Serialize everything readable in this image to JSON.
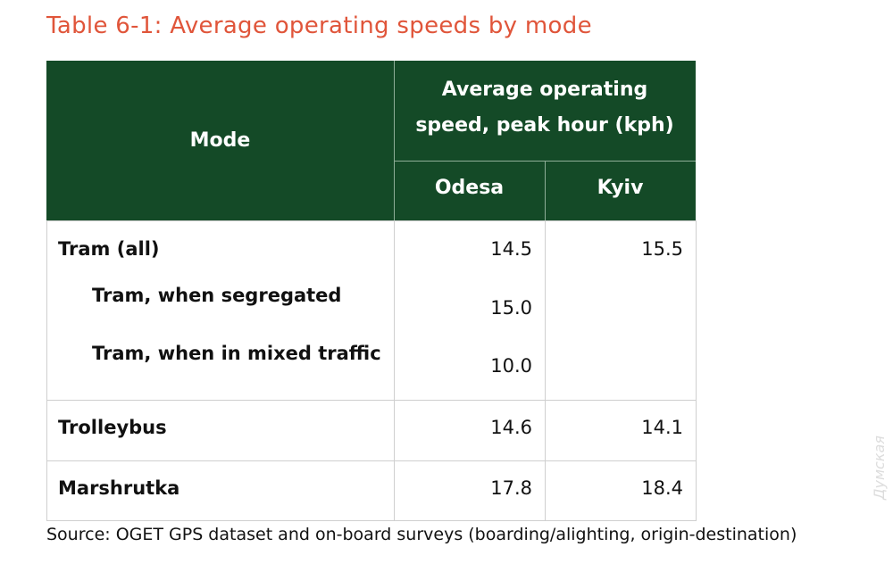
{
  "title": "Table 6-1: Average operating speeds by mode",
  "colors": {
    "title": "#e0553a",
    "header_bg": "#144a27"
  },
  "table": {
    "headers": {
      "mode": "Mode",
      "speed_line1": "Average  operating",
      "speed_line2": "speed, peak hour (kph)",
      "odesa": "Odesa",
      "kyiv": "Kyiv"
    },
    "rows": [
      {
        "mode": "Tram (all)",
        "odesa": "14.5",
        "kyiv": "15.5"
      },
      {
        "mode": "Tram, when segregated",
        "odesa": "15.0",
        "kyiv": ""
      },
      {
        "mode": "Tram, when in mixed traffic",
        "odesa": "10.0",
        "kyiv": ""
      },
      {
        "mode": "Trolleybus",
        "odesa": "14.6",
        "kyiv": "14.1"
      },
      {
        "mode": "Marshrutka",
        "odesa": "17.8",
        "kyiv": "18.4"
      }
    ]
  },
  "source": "Source: OGET GPS dataset and on-board surveys (boarding/alighting, origin-destination)",
  "watermark": "Думская"
}
